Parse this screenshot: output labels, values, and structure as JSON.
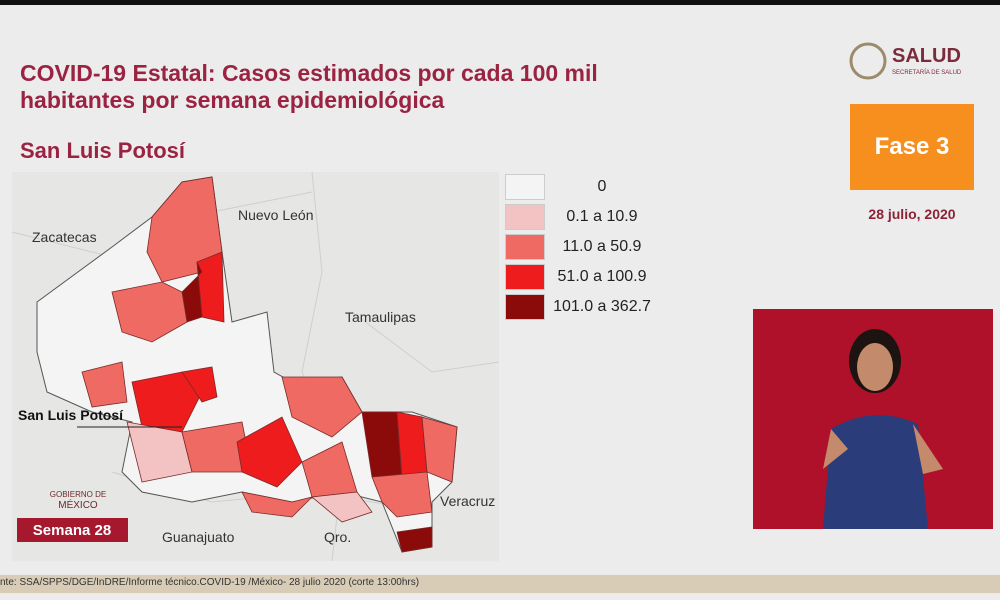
{
  "header": {
    "title_line1": "COVID-19 Estatal: Casos estimados por cada 100 mil",
    "title_line2": "habitantes por semana epidemiológica",
    "state": "San Luis Potosí"
  },
  "logo": {
    "name": "SALUD",
    "subtitle": "SECRETARÍA DE SALUD"
  },
  "phase": {
    "label": "Fase 3",
    "date": "28 julio, 2020"
  },
  "legend": {
    "items": [
      {
        "label": "0",
        "color": "#f4f4f4"
      },
      {
        "label": "0.1 a 10.9",
        "color": "#f3c2c2"
      },
      {
        "label": "11.0 a 50.9",
        "color": "#ef6a62"
      },
      {
        "label": "51.0 a 100.9",
        "color": "#ee1c1c"
      },
      {
        "label": "101.0 a 362.7",
        "color": "#8b0a0a"
      }
    ]
  },
  "map": {
    "labels": [
      "Zacatecas",
      "Nuevo León",
      "Tamaulipas",
      "Veracruz",
      "Guanajuato",
      "Qro."
    ],
    "callout": "San Luis Potosí",
    "week": "Semana 28",
    "gov_line1": "GOBIERNO DE",
    "gov_line2": "MÉXICO"
  },
  "footer": {
    "source": "nte: SSA/SPPS/DGE/InDRE/Informe técnico.COVID-19 /México- 28 julio 2020 (corte 13:00hrs)"
  }
}
